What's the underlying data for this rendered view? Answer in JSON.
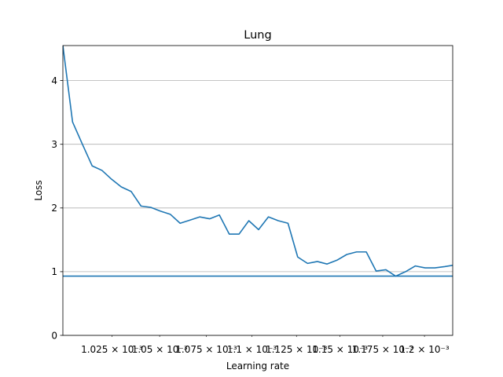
{
  "chart_data": {
    "type": "line",
    "title": "Lung",
    "xlabel": "Learning rate",
    "ylabel": "Loss",
    "xscale": "log",
    "xlim": [
      0.001,
      0.0012172
    ],
    "ylim": [
      0,
      4.55
    ],
    "grid": "y",
    "x_tick_labels": [
      {
        "value": 0.001025,
        "label": "1.025 × 10⁻³"
      },
      {
        "value": 0.00105,
        "label": "1.05 × 10⁻³"
      },
      {
        "value": 0.001075,
        "label": "1.075 × 10⁻³"
      },
      {
        "value": 0.0011,
        "label": "1.1 × 10⁻³"
      },
      {
        "value": 0.001125,
        "label": "1.125 × 10⁻³"
      },
      {
        "value": 0.00115,
        "label": "1.15 × 10⁻³"
      },
      {
        "value": 0.001175,
        "label": "1.175 × 10⁻³"
      },
      {
        "value": 0.0012,
        "label": "1.2 × 10⁻³"
      }
    ],
    "y_ticks": [
      0,
      1,
      2,
      3,
      4
    ],
    "y_tick_labels": [
      "0",
      "1",
      "2",
      "3",
      "4"
    ],
    "series": [
      {
        "color": "#1f77b4",
        "x": [
          0.001,
          0.0010049,
          0.0010099,
          0.0010149,
          0.0010199,
          0.0010249,
          0.0010299,
          0.001035,
          0.0010402,
          0.0010453,
          0.0010505,
          0.0010557,
          0.0010609,
          0.0010662,
          0.0010715,
          0.0010768,
          0.0010821,
          0.0010875,
          0.0010929,
          0.0010983,
          0.0011037,
          0.0011092,
          0.0011147,
          0.0011202,
          0.0011257,
          0.0011313,
          0.0011369,
          0.0011425,
          0.0011482,
          0.0011539,
          0.0011596,
          0.0011653,
          0.0011711,
          0.0011769,
          0.0011827,
          0.0011886,
          0.0011945,
          0.0012004,
          0.0012063,
          0.0012123,
          0.0012172
        ],
        "y": [
          4.55,
          3.35,
          3.0,
          2.66,
          2.59,
          2.45,
          2.33,
          2.26,
          2.03,
          2.01,
          1.95,
          1.9,
          1.76,
          1.81,
          1.86,
          1.83,
          1.89,
          1.59,
          1.59,
          1.8,
          1.66,
          1.86,
          1.8,
          1.76,
          1.23,
          1.13,
          1.16,
          1.12,
          1.18,
          1.27,
          1.31,
          1.31,
          1.01,
          1.03,
          0.93,
          1.0,
          1.09,
          1.06,
          1.06,
          1.08,
          1.1
        ]
      }
    ],
    "hlines": [
      {
        "y": 0.93,
        "color": "#1f77b4"
      }
    ]
  }
}
